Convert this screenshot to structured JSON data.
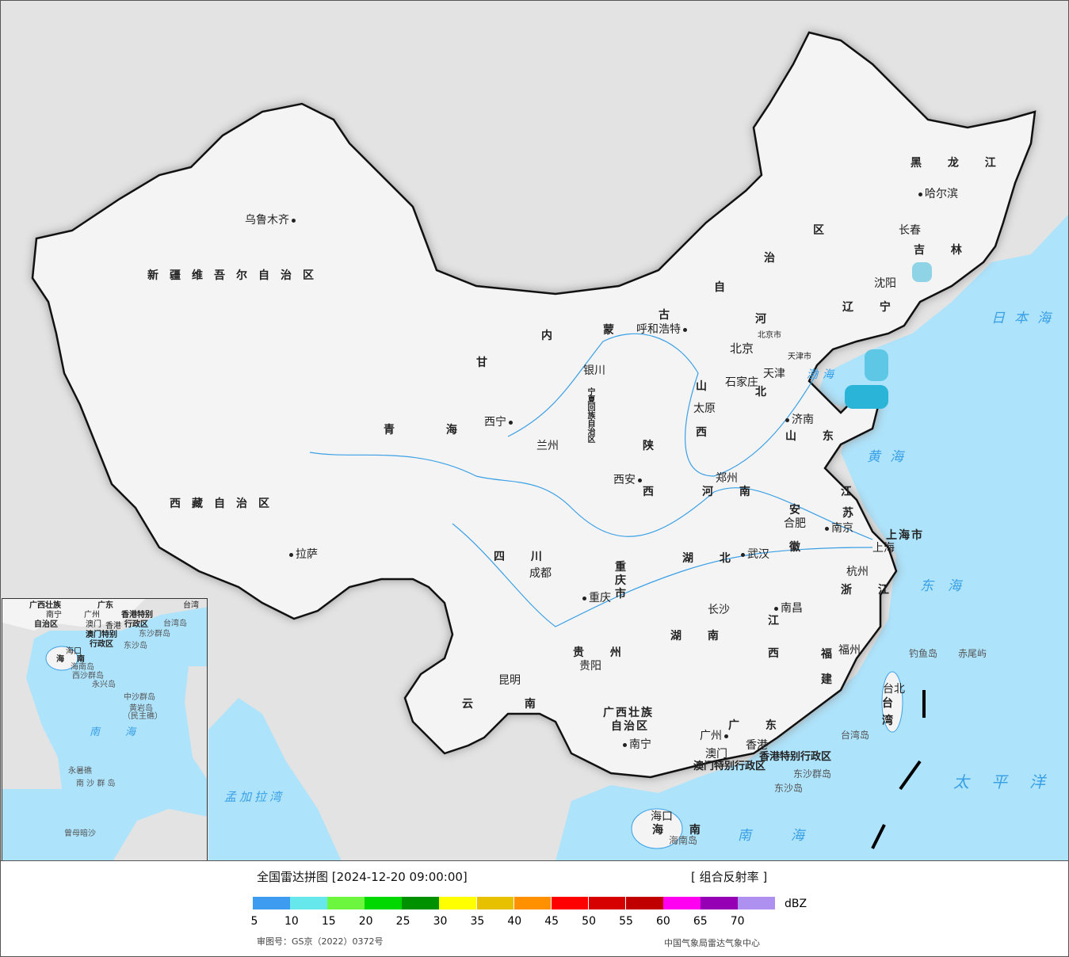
{
  "legend": {
    "title": "全国雷达拼图 [2024-12-20 09:00:00]",
    "product": "[ 组合反射率 ]",
    "unit": "dBZ",
    "colors": [
      "#3d9bf0",
      "#66e7ec",
      "#6cf63e",
      "#00d800",
      "#009100",
      "#ffff00",
      "#e7c000",
      "#ff9000",
      "#ff0000",
      "#d60000",
      "#c00000",
      "#ff00f0",
      "#9600b4",
      "#ad90f0"
    ],
    "ticks": [
      "5",
      "10",
      "15",
      "20",
      "25",
      "30",
      "35",
      "40",
      "45",
      "50",
      "55",
      "60",
      "65",
      "70"
    ],
    "approval": "审图号：GS京（2022）0372号",
    "source": "中国气象局雷达气象中心"
  },
  "map": {
    "ocean_color": "#ade3fb",
    "land_color": "#f4f4f4",
    "neighbor_color": "#e3e3e3",
    "provinces": [
      "新疆维吾尔自治区",
      "西藏自治区",
      "青  海",
      "甘",
      "内",
      "蒙",
      "古",
      "自",
      "治",
      "区",
      "黑 龙 江",
      "吉 林",
      "辽 宁",
      "河",
      "北",
      "山",
      "西",
      "陕",
      "西",
      "河 南",
      "山 东",
      "江",
      "苏",
      "安",
      "徽",
      "湖 北",
      "四 川",
      "重",
      "庆",
      "市",
      "贵 州",
      "云 南",
      "湖 南",
      "江",
      "西",
      "浙 江",
      "福",
      "建",
      "广西壮族",
      "自治区",
      "广 东",
      "海 南",
      "台",
      "湾",
      "北京市",
      "天津市",
      "上海市",
      "宁夏回族自治区"
    ],
    "cities": [
      "乌鲁木齐",
      "拉萨",
      "西宁",
      "兰州",
      "银川",
      "呼和浩特",
      "北京",
      "天津",
      "石家庄",
      "太原",
      "济南",
      "郑州",
      "西安",
      "合肥",
      "南京",
      "上海",
      "杭州",
      "武汉",
      "长沙",
      "南昌",
      "福州",
      "成都",
      "重庆",
      "贵阳",
      "昆明",
      "南宁",
      "广州",
      "澳门",
      "香港",
      "海口",
      "哈尔滨",
      "长春",
      "沈阳",
      "台北"
    ],
    "seas": [
      "日本海",
      "渤海",
      "黄海",
      "东海",
      "太平洋",
      "南海",
      "孟加拉湾"
    ],
    "islands": [
      "钓鱼岛",
      "赤尾屿",
      "台湾岛",
      "东沙群岛",
      "东沙岛",
      "海南岛",
      "香港特别行政区",
      "澳门特别行政区"
    ]
  },
  "inset": {
    "labels": [
      "广西壮族",
      "自治区",
      "南宁",
      "广东",
      "广州",
      "澳门",
      "香港",
      "香港特别",
      "行政区",
      "澳门特别",
      "行政区",
      "台湾",
      "台湾岛",
      "东沙群岛",
      "东沙岛",
      "海口",
      "海",
      "南",
      "海南岛",
      "西沙群岛",
      "永兴岛",
      "中沙群岛",
      "黄岩岛",
      "（民主礁）",
      "南",
      "海",
      "永暑礁",
      "南 沙 群 岛",
      "曾母暗沙"
    ]
  }
}
